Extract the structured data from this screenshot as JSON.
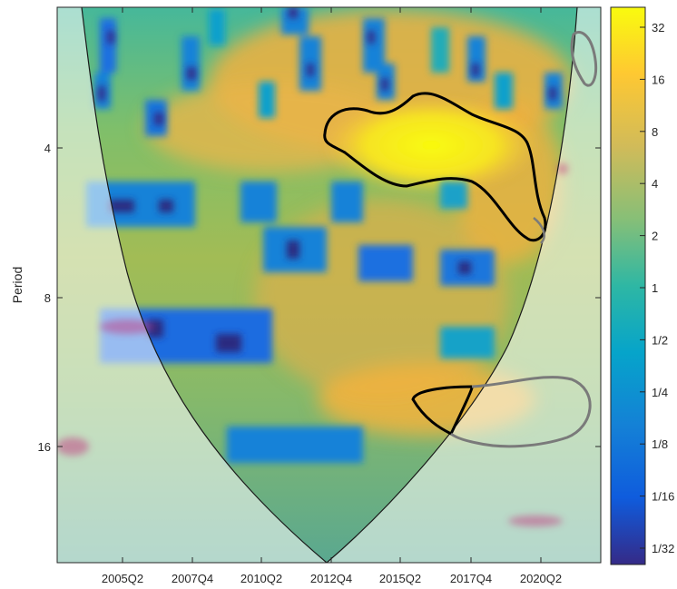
{
  "chart_data": {
    "type": "heatmap",
    "title": "",
    "xlabel": "",
    "ylabel": "Period",
    "x_ticks": [
      "2005Q2",
      "2007Q4",
      "2010Q2",
      "2012Q4",
      "2015Q2",
      "2017Q4",
      "2020Q2"
    ],
    "y_ticks": [
      {
        "value": 4,
        "label": "4"
      },
      {
        "value": 8,
        "label": "8"
      },
      {
        "value": 16,
        "label": "16"
      }
    ],
    "y_scale": "log2",
    "y_direction": "reversed",
    "colorbar": {
      "scale": "log2",
      "colormap": "parula",
      "ticks": [
        {
          "value": 32,
          "label": "32"
        },
        {
          "value": 16,
          "label": "16"
        },
        {
          "value": 8,
          "label": "8"
        },
        {
          "value": 4,
          "label": "4"
        },
        {
          "value": 2,
          "label": "2"
        },
        {
          "value": 1,
          "label": "1"
        },
        {
          "value": 0.5,
          "label": "1/2"
        },
        {
          "value": 0.25,
          "label": "1/4"
        },
        {
          "value": 0.125,
          "label": "1/8"
        },
        {
          "value": 0.0625,
          "label": "1/16"
        },
        {
          "value": 0.03125,
          "label": "1/32"
        }
      ]
    },
    "cone_of_influence": true,
    "significance_contours": 2
  }
}
